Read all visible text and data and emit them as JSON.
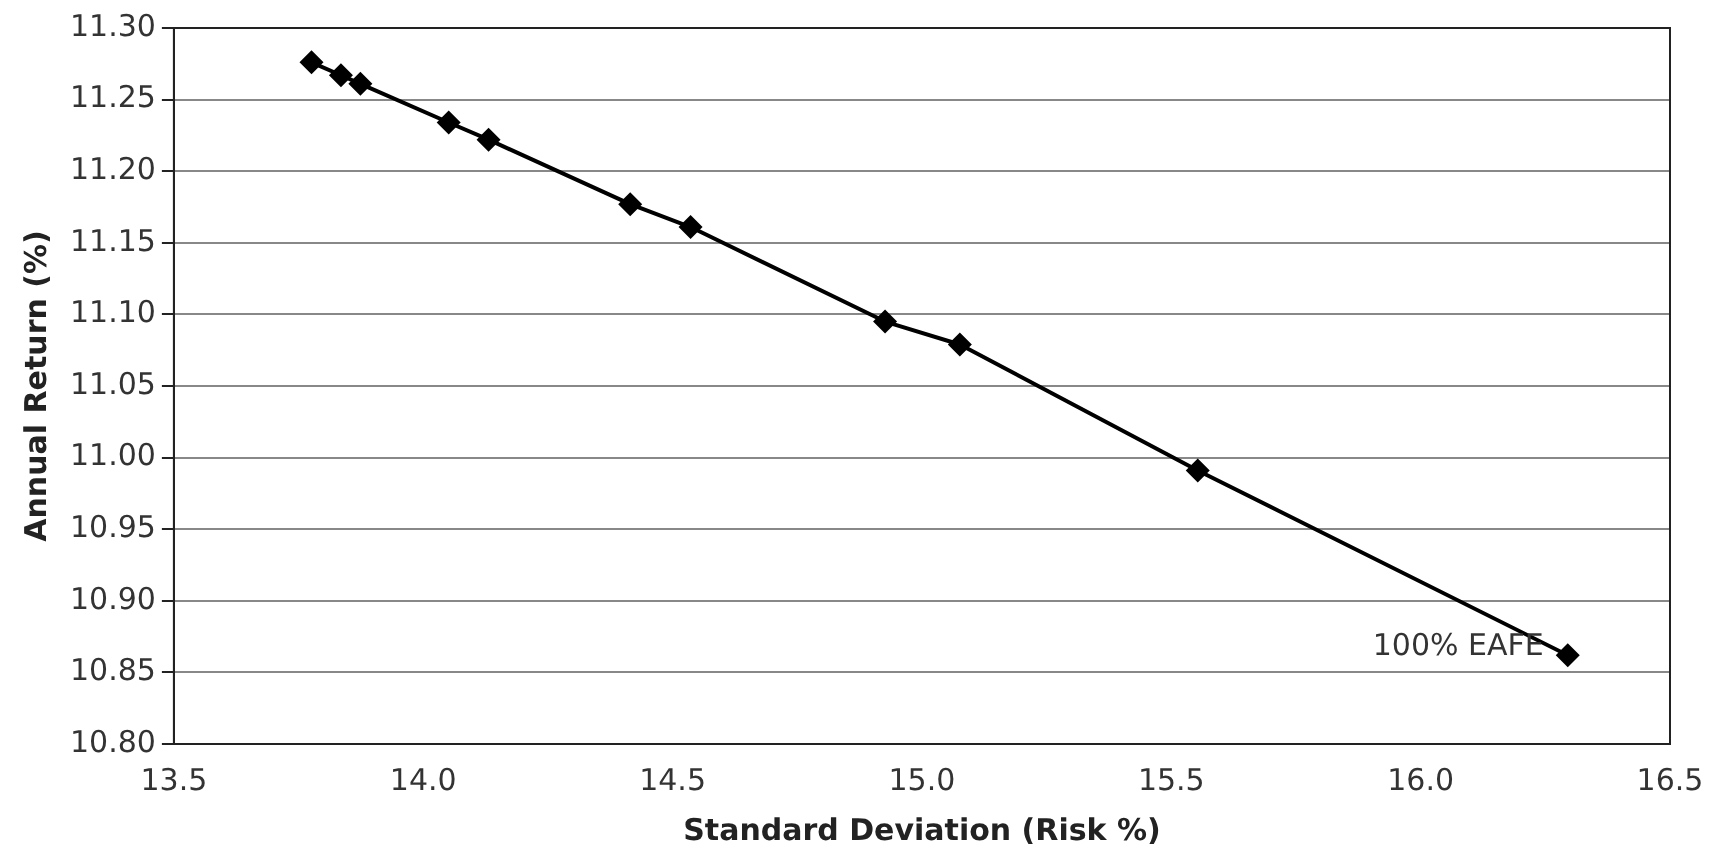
{
  "chart_data": {
    "type": "line",
    "xlabel": "Standard Deviation (Risk %)",
    "ylabel": "Annual Return (%)",
    "x": [
      13.776,
      13.835,
      13.874,
      14.051,
      14.131,
      14.415,
      14.536,
      14.926,
      15.076,
      15.553,
      16.295
    ],
    "series": [
      {
        "color": "#000000",
        "values": [
          11.276,
          11.267,
          11.261,
          11.234,
          11.222,
          11.177,
          11.161,
          11.095,
          11.079,
          10.991,
          10.862
        ]
      }
    ],
    "xlim": [
      13.5,
      16.5
    ],
    "xticks": [
      {
        "value": 13.5,
        "label": "13.5"
      },
      {
        "value": 14,
        "label": "14.0"
      },
      {
        "value": 14.5,
        "label": "14.5"
      },
      {
        "value": 15,
        "label": "15.0"
      },
      {
        "value": 15.5,
        "label": "15.5"
      },
      {
        "value": 16,
        "label": "16.0"
      },
      {
        "value": 16.5,
        "label": "16.5"
      }
    ],
    "ylim": [
      10.8,
      11.3
    ],
    "yticks": [
      {
        "value": 10.8,
        "label": "10.80"
      },
      {
        "value": 10.85,
        "label": "10.85"
      },
      {
        "value": 10.9,
        "label": "10.90"
      },
      {
        "value": 10.95,
        "label": "10.95"
      },
      {
        "value": 11,
        "label": "11.00"
      },
      {
        "value": 11.05,
        "label": "11.05"
      },
      {
        "value": 11.1,
        "label": "11.10"
      },
      {
        "value": 11.15,
        "label": "11.15"
      },
      {
        "value": 11.2,
        "label": "11.20"
      },
      {
        "value": 11.25,
        "label": "11.25"
      },
      {
        "value": 11.3,
        "label": "11.30"
      }
    ],
    "annotations": [
      {
        "text": "100% EAFE",
        "x": 16.295,
        "y": 10.862
      }
    ],
    "grid": "y",
    "legend": false,
    "marker": "diamond",
    "line_style": "solid"
  }
}
